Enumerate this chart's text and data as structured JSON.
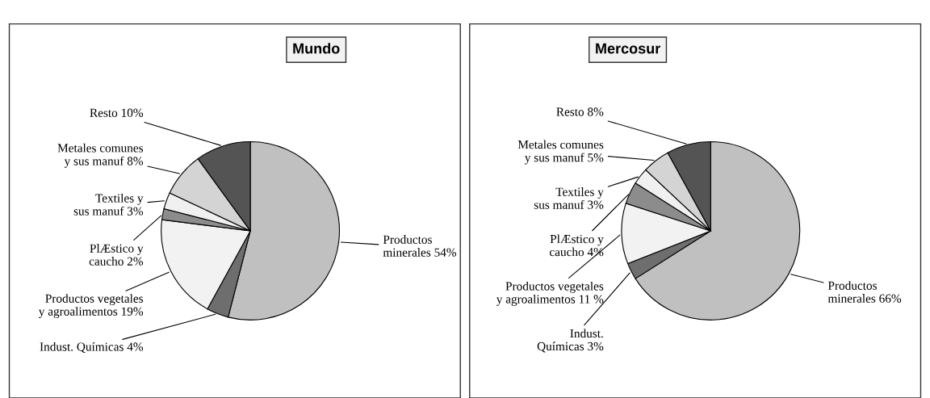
{
  "chart_data": [
    {
      "type": "pie",
      "title": "Mundo",
      "categories": [
        "Productos\nminerales",
        "Indust. Químicas",
        "Productos vegetales\ny agroalimentos",
        "PlÆstico y\ncaucho",
        "Textiles y\nsus manuf",
        "Metales comunes\ny sus manuf",
        "Resto"
      ],
      "values": [
        54,
        4,
        19,
        2,
        3,
        8,
        10
      ],
      "value_labels": [
        "54%",
        "4%",
        "19%",
        "2%",
        "3%",
        "8%",
        "10%"
      ],
      "colors": [
        "#c0c0c0",
        "#6e6e6e",
        "#f2f2f2",
        "#8c8c8c",
        "#f0f0f0",
        "#d4d4d4",
        "#545454"
      ]
    },
    {
      "type": "pie",
      "title": "Mercosur",
      "categories": [
        "Productos\nminerales",
        "Indust.\nQuímicas",
        "Productos vegetales\ny agroalimentos",
        "PlÆstico y\ncaucho",
        "Textiles y\nsus manuf",
        "Metales comunes\ny sus manuf",
        "Resto"
      ],
      "values": [
        66,
        3,
        11,
        4,
        3,
        5,
        8
      ],
      "value_labels": [
        "66%",
        "3%",
        "11 %",
        "4%",
        "3%",
        "5%",
        "8%"
      ],
      "colors": [
        "#c0c0c0",
        "#6e6e6e",
        "#f2f2f2",
        "#8c8c8c",
        "#f0f0f0",
        "#d4d4d4",
        "#545454"
      ]
    }
  ]
}
